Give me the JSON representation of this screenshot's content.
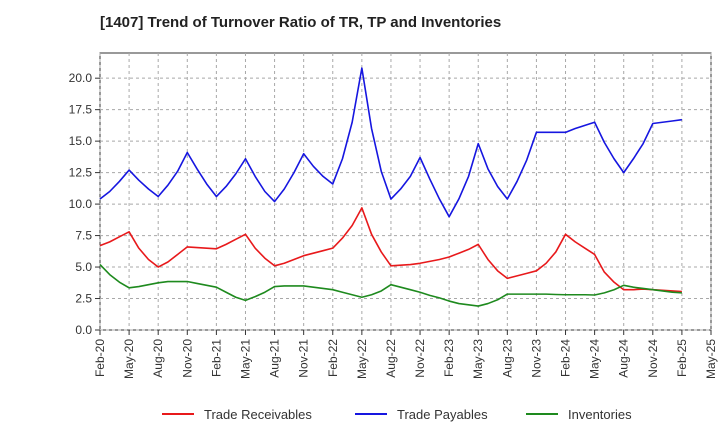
{
  "chart_data": {
    "type": "line",
    "title": "[1407]  Trend of Turnover Ratio of TR, TP and Inventories",
    "xlabel": "",
    "ylabel": "",
    "ylim": [
      0,
      22
    ],
    "grid": "dashed",
    "legend_position": "bottom",
    "x_tick_labels": [
      "Feb-20",
      "May-20",
      "Aug-20",
      "Nov-20",
      "Feb-21",
      "May-21",
      "Aug-21",
      "Nov-21",
      "Feb-22",
      "May-22",
      "Aug-22",
      "Nov-22",
      "Feb-23",
      "May-23",
      "Aug-23",
      "Nov-23",
      "Feb-24",
      "May-24",
      "Aug-24",
      "Nov-24",
      "Feb-25",
      "May-25"
    ],
    "y_tick_labels": [
      "0.0",
      "2.5",
      "5.0",
      "7.5",
      "10.0",
      "12.5",
      "15.0",
      "17.5",
      "20.0"
    ],
    "y_ticks": [
      0,
      2.5,
      5.0,
      7.5,
      10.0,
      12.5,
      15.0,
      17.5,
      20.0
    ],
    "x": [
      "Feb-20",
      "Mar-20",
      "Apr-20",
      "May-20",
      "Jun-20",
      "Jul-20",
      "Aug-20",
      "Sep-20",
      "Oct-20",
      "Nov-20",
      "Dec-20",
      "Jan-21",
      "Feb-21",
      "Mar-21",
      "Apr-21",
      "May-21",
      "Jun-21",
      "Jul-21",
      "Aug-21",
      "Sep-21",
      "Oct-21",
      "Nov-21",
      "Dec-21",
      "Jan-22",
      "Feb-22",
      "Mar-22",
      "Apr-22",
      "May-22",
      "Jun-22",
      "Jul-22",
      "Aug-22",
      "Sep-22",
      "Oct-22",
      "Nov-22",
      "Dec-22",
      "Jan-23",
      "Feb-23",
      "Mar-23",
      "Apr-23",
      "May-23",
      "Jun-23",
      "Jul-23",
      "Aug-23",
      "Sep-23",
      "Oct-23",
      "Nov-23",
      "Dec-23",
      "Jan-24",
      "Feb-24",
      "Mar-24",
      "Apr-24",
      "May-24",
      "Jun-24",
      "Jul-24",
      "Aug-24",
      "Sep-24",
      "Oct-24",
      "Nov-24",
      "Dec-24",
      "Jan-25",
      "Feb-25"
    ],
    "series": [
      {
        "name": "Trade Receivables",
        "color": "#e8191b",
        "values": [
          6.7,
          7.0,
          7.4,
          7.8,
          6.5,
          5.6,
          5.0,
          5.4,
          6.0,
          6.6,
          6.55,
          6.5,
          6.45,
          6.8,
          7.2,
          7.6,
          6.5,
          5.7,
          5.1,
          5.3,
          5.6,
          5.9,
          6.1,
          6.3,
          6.5,
          7.3,
          8.3,
          9.7,
          7.6,
          6.2,
          5.1,
          5.15,
          5.2,
          5.3,
          5.45,
          5.6,
          5.8,
          6.1,
          6.4,
          6.8,
          5.6,
          4.7,
          4.1,
          4.3,
          4.5,
          4.7,
          5.3,
          6.2,
          7.6,
          7.0,
          6.5,
          6.0,
          4.6,
          3.8,
          3.2,
          3.2,
          3.25,
          3.2,
          3.15,
          3.1,
          3.05
        ]
      },
      {
        "name": "Trade Payables",
        "color": "#1616e0",
        "values": [
          10.4,
          11.0,
          11.8,
          12.7,
          11.9,
          11.2,
          10.6,
          11.5,
          12.6,
          14.1,
          12.8,
          11.6,
          10.6,
          11.4,
          12.4,
          13.6,
          12.2,
          11.0,
          10.2,
          11.2,
          12.5,
          14.0,
          13.0,
          12.2,
          11.6,
          13.6,
          16.5,
          20.8,
          16.0,
          12.6,
          10.4,
          11.2,
          12.2,
          13.7,
          12.0,
          10.4,
          9.0,
          10.4,
          12.2,
          14.8,
          12.8,
          11.4,
          10.4,
          11.8,
          13.5,
          15.7,
          15.7,
          15.7,
          15.7,
          16.0,
          16.25,
          16.5,
          14.9,
          13.6,
          12.5,
          13.6,
          14.8,
          16.4,
          16.5,
          16.6,
          16.7
        ]
      },
      {
        "name": "Inventories",
        "color": "#1e8a1e",
        "values": [
          5.2,
          4.4,
          3.8,
          3.35,
          3.45,
          3.6,
          3.75,
          3.85,
          3.85,
          3.85,
          3.7,
          3.55,
          3.4,
          3.0,
          2.6,
          2.35,
          2.65,
          3.0,
          3.45,
          3.5,
          3.5,
          3.5,
          3.4,
          3.3,
          3.2,
          3.0,
          2.8,
          2.6,
          2.8,
          3.1,
          3.6,
          3.4,
          3.2,
          3.0,
          2.75,
          2.55,
          2.3,
          2.1,
          2.0,
          1.9,
          2.1,
          2.4,
          2.85,
          2.85,
          2.85,
          2.85,
          2.85,
          2.82,
          2.8,
          2.8,
          2.8,
          2.78,
          2.95,
          3.2,
          3.55,
          3.4,
          3.3,
          3.2,
          3.1,
          3.0,
          2.95
        ]
      }
    ]
  }
}
